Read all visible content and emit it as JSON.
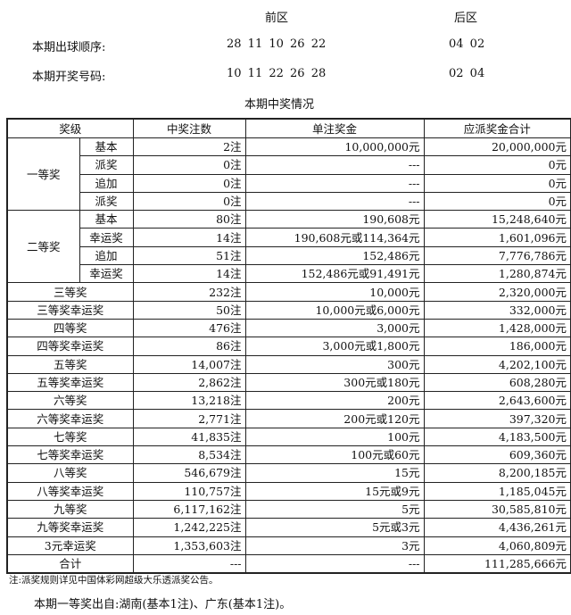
{
  "draw": {
    "front_label": "前区",
    "back_label": "后区",
    "order_label": "本期出球顺序:",
    "order_front": "28 11 10 26 22",
    "order_back": "04 02",
    "numbers_label": "本期开奖号码:",
    "numbers_front": "10 11 22 26 28",
    "numbers_back": "02 04"
  },
  "table": {
    "title": "本期中奖情况",
    "headers": [
      "奖级",
      "中奖注数",
      "单注奖金",
      "应派奖金合计"
    ],
    "first": {
      "name": "一等奖",
      "rows": [
        {
          "sub": "基本",
          "count": "2注",
          "prize": "10,000,000元",
          "total": "20,000,000元"
        },
        {
          "sub": "派奖",
          "count": "0注",
          "prize": "---",
          "total": "0元"
        },
        {
          "sub": "追加",
          "count": "0注",
          "prize": "---",
          "total": "0元"
        },
        {
          "sub": "派奖",
          "count": "0注",
          "prize": "---",
          "total": "0元"
        }
      ]
    },
    "second": {
      "name": "二等奖",
      "rows": [
        {
          "sub": "基本",
          "count": "80注",
          "prize": "190,608元",
          "total": "15,248,640元"
        },
        {
          "sub": "幸运奖",
          "count": "14注",
          "prize": "190,608元或114,364元",
          "total": "1,601,096元"
        },
        {
          "sub": "追加",
          "count": "51注",
          "prize": "152,486元",
          "total": "7,776,786元"
        },
        {
          "sub": "幸运奖",
          "count": "14注",
          "prize": "152,486元或91,491元",
          "total": "1,280,874元"
        }
      ]
    },
    "rows": [
      {
        "name": "三等奖",
        "count": "232注",
        "prize": "10,000元",
        "total": "2,320,000元"
      },
      {
        "name": "三等奖幸运奖",
        "count": "50注",
        "prize": "10,000元或6,000元",
        "total": "332,000元"
      },
      {
        "name": "四等奖",
        "count": "476注",
        "prize": "3,000元",
        "total": "1,428,000元"
      },
      {
        "name": "四等奖幸运奖",
        "count": "86注",
        "prize": "3,000元或1,800元",
        "total": "186,000元"
      },
      {
        "name": "五等奖",
        "count": "14,007注",
        "prize": "300元",
        "total": "4,202,100元"
      },
      {
        "name": "五等奖幸运奖",
        "count": "2,862注",
        "prize": "300元或180元",
        "total": "608,280元"
      },
      {
        "name": "六等奖",
        "count": "13,218注",
        "prize": "200元",
        "total": "2,643,600元"
      },
      {
        "name": "六等奖幸运奖",
        "count": "2,771注",
        "prize": "200元或120元",
        "total": "397,320元"
      },
      {
        "name": "七等奖",
        "count": "41,835注",
        "prize": "100元",
        "total": "4,183,500元"
      },
      {
        "name": "七等奖幸运奖",
        "count": "8,534注",
        "prize": "100元或60元",
        "total": "609,360元"
      },
      {
        "name": "八等奖",
        "count": "546,679注",
        "prize": "15元",
        "total": "8,200,185元"
      },
      {
        "name": "八等奖幸运奖",
        "count": "110,757注",
        "prize": "15元或9元",
        "total": "1,185,045元"
      },
      {
        "name": "九等奖",
        "count": "6,117,162注",
        "prize": "5元",
        "total": "30,585,810元"
      },
      {
        "name": "九等奖幸运奖",
        "count": "1,242,225注",
        "prize": "5元或3元",
        "total": "4,436,261元"
      },
      {
        "name": "3元幸运奖",
        "count": "1,353,603注",
        "prize": "3元",
        "total": "4,060,809元"
      },
      {
        "name": "合计",
        "count": "---",
        "prize": "---",
        "total": "111,285,666元"
      }
    ]
  },
  "note": "注:派奖规则详见中国体彩网超级大乐透派奖公告。",
  "winners": "本期一等奖出自:湖南(基本1注)、广东(基本1注)。"
}
